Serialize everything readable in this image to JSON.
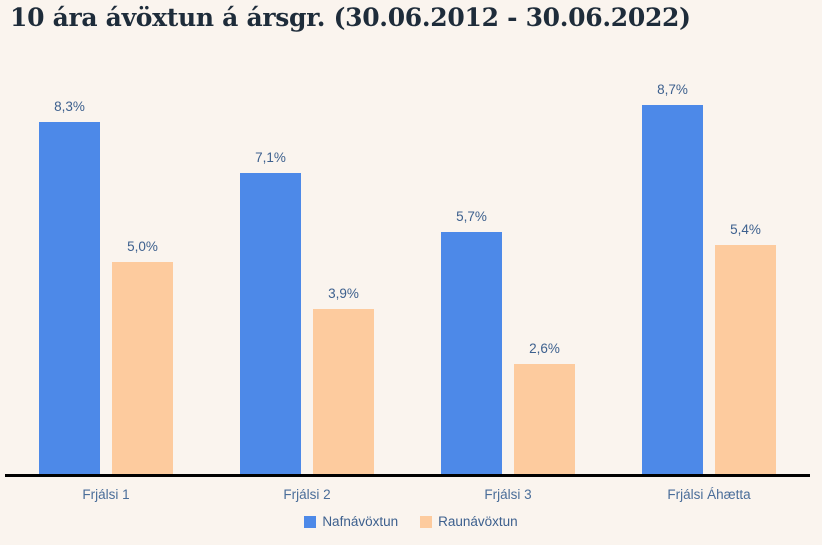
{
  "chart_data": {
    "type": "bar",
    "title": "10 ára ávöxtun á ársgr. (30.06.2012 - 30.06.2022)",
    "categories": [
      "Frjálsi 1",
      "Frjálsi 2",
      "Frjálsi 3",
      "Frjálsi Áhætta"
    ],
    "series": [
      {
        "name": "Nafnávöxtun",
        "color": "#4d89e8",
        "values": [
          8.3,
          7.1,
          5.7,
          8.7
        ],
        "labels": [
          "8,3%",
          "7,1%",
          "5,7%",
          "8,7%"
        ]
      },
      {
        "name": "Raunávöxtun",
        "color": "#fdcb9e",
        "values": [
          5.0,
          3.9,
          2.6,
          5.4
        ],
        "labels": [
          "5,0%",
          "3,9%",
          "2,6%",
          "5,4%"
        ]
      }
    ],
    "ylim": [
      0,
      9.4
    ],
    "value_format": "comma-decimal-percent",
    "legend_position": "bottom",
    "grid": false,
    "y_axis_visible": false,
    "axis_line_color": "#000000",
    "background_color": "#faf4ee"
  }
}
